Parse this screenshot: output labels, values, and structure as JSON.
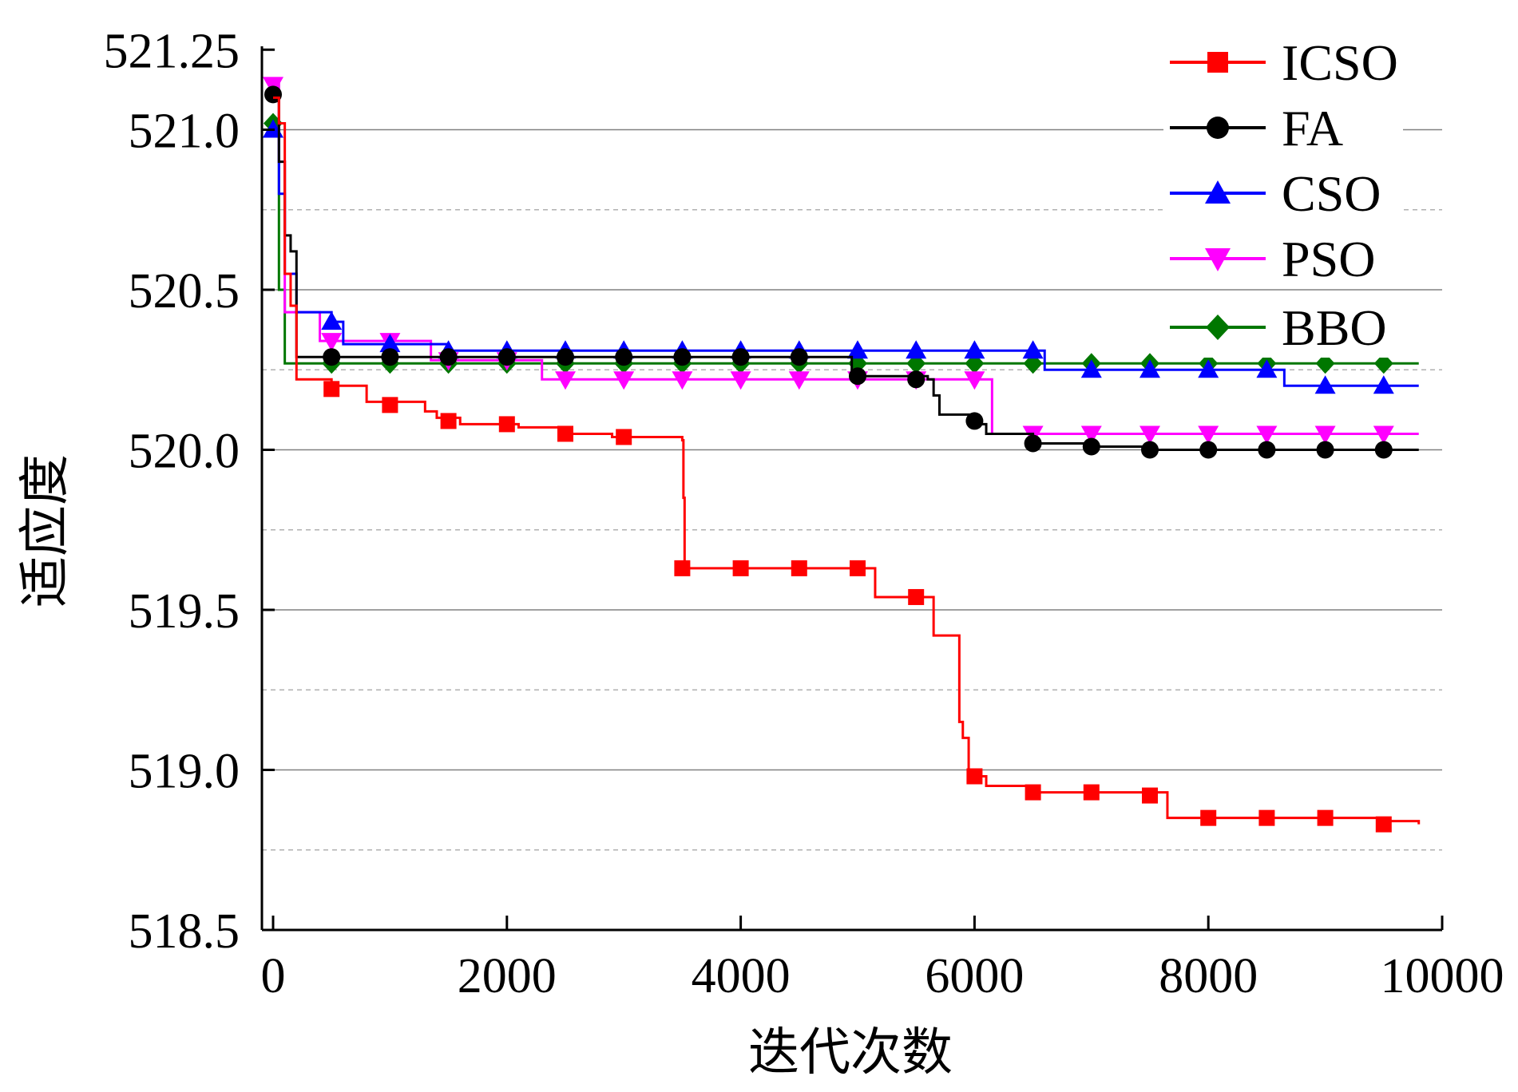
{
  "chart_data": {
    "type": "line",
    "xlabel": "迭代次数",
    "ylabel": "适应度",
    "xlim": [
      -100,
      10000
    ],
    "ylim": [
      518.5,
      521.25
    ],
    "xticks": [
      0,
      2000,
      4000,
      6000,
      8000,
      10000
    ],
    "yticks": [
      518.5,
      519.0,
      519.5,
      520.0,
      520.5,
      521.0,
      521.25
    ],
    "ytick_labels": [
      "518.5",
      "519.0",
      "519.5",
      "520.0",
      "520.5",
      "521.0",
      "521.25"
    ],
    "grid": "horizontal (solid at major, dashed at minor)",
    "legend_position": "top-right",
    "series": [
      {
        "name": "ICSO",
        "color": "#ff0000",
        "marker": "square",
        "step_points": [
          [
            0,
            521.1
          ],
          [
            50,
            521.02
          ],
          [
            100,
            520.55
          ],
          [
            150,
            520.45
          ],
          [
            200,
            520.22
          ],
          [
            500,
            520.2
          ],
          [
            800,
            520.15
          ],
          [
            1300,
            520.12
          ],
          [
            1400,
            520.1
          ],
          [
            1600,
            520.08
          ],
          [
            2100,
            520.07
          ],
          [
            2500,
            520.05
          ],
          [
            2900,
            520.04
          ],
          [
            3500,
            520.03
          ],
          [
            3510,
            519.85
          ],
          [
            3520,
            519.63
          ],
          [
            5100,
            519.63
          ],
          [
            5150,
            519.54
          ],
          [
            5600,
            519.54
          ],
          [
            5650,
            519.42
          ],
          [
            5850,
            519.42
          ],
          [
            5870,
            519.15
          ],
          [
            5900,
            519.1
          ],
          [
            5950,
            519.0
          ],
          [
            6000,
            518.98
          ],
          [
            6100,
            518.95
          ],
          [
            6500,
            518.93
          ],
          [
            7600,
            518.93
          ],
          [
            7650,
            518.85
          ],
          [
            9500,
            518.84
          ],
          [
            9800,
            518.83
          ]
        ],
        "marker_x": [
          500,
          1000,
          1500,
          2000,
          2500,
          3000,
          3500,
          4000,
          4500,
          5000,
          5500,
          6000,
          6500,
          7000,
          7500,
          8000,
          8500,
          9000,
          9500
        ],
        "marker_y": [
          520.19,
          520.14,
          520.09,
          520.08,
          520.05,
          520.04,
          519.63,
          519.63,
          519.63,
          519.63,
          519.54,
          518.98,
          518.93,
          518.93,
          518.92,
          518.85,
          518.85,
          518.85,
          518.83
        ]
      },
      {
        "name": "FA",
        "color": "#000000",
        "marker": "circle",
        "step_points": [
          [
            0,
            521.12
          ],
          [
            50,
            520.9
          ],
          [
            100,
            520.67
          ],
          [
            150,
            520.62
          ],
          [
            200,
            520.29
          ],
          [
            4900,
            520.29
          ],
          [
            4950,
            520.23
          ],
          [
            5600,
            520.22
          ],
          [
            5650,
            520.17
          ],
          [
            5700,
            520.11
          ],
          [
            6000,
            520.1
          ],
          [
            6050,
            520.08
          ],
          [
            6100,
            520.05
          ],
          [
            6500,
            520.02
          ],
          [
            7000,
            520.01
          ],
          [
            7500,
            520.0
          ],
          [
            9800,
            520.0
          ]
        ],
        "marker_x": [
          0,
          500,
          1000,
          1500,
          2000,
          2500,
          3000,
          3500,
          4000,
          4500,
          5000,
          5500,
          6000,
          6500,
          7000,
          7500,
          8000,
          8500,
          9000,
          9500
        ],
        "marker_y": [
          521.11,
          520.29,
          520.29,
          520.29,
          520.29,
          520.29,
          520.29,
          520.29,
          520.29,
          520.29,
          520.23,
          520.22,
          520.09,
          520.02,
          520.01,
          520.0,
          520.0,
          520.0,
          520.0,
          520.0
        ]
      },
      {
        "name": "CSO",
        "color": "#0000ff",
        "marker": "triangle-up",
        "step_points": [
          [
            0,
            521.0
          ],
          [
            50,
            520.8
          ],
          [
            100,
            520.55
          ],
          [
            200,
            520.43
          ],
          [
            500,
            520.4
          ],
          [
            600,
            520.33
          ],
          [
            1000,
            520.33
          ],
          [
            1500,
            520.31
          ],
          [
            6500,
            520.31
          ],
          [
            6600,
            520.25
          ],
          [
            8600,
            520.25
          ],
          [
            8650,
            520.2
          ],
          [
            9800,
            520.2
          ]
        ],
        "marker_x": [
          0,
          500,
          1000,
          1500,
          2000,
          2500,
          3000,
          3500,
          4000,
          4500,
          5000,
          5500,
          6000,
          6500,
          7000,
          7500,
          8000,
          8500,
          9000,
          9500
        ],
        "marker_y": [
          521.0,
          520.4,
          520.33,
          520.31,
          520.31,
          520.31,
          520.31,
          520.31,
          520.31,
          520.31,
          520.31,
          520.31,
          520.31,
          520.31,
          520.25,
          520.25,
          520.25,
          520.25,
          520.2,
          520.2
        ]
      },
      {
        "name": "PSO",
        "color": "#ff00ff",
        "marker": "triangle-down",
        "step_points": [
          [
            0,
            521.15
          ],
          [
            50,
            520.9
          ],
          [
            100,
            520.43
          ],
          [
            350,
            520.43
          ],
          [
            400,
            520.34
          ],
          [
            1300,
            520.34
          ],
          [
            1350,
            520.28
          ],
          [
            2250,
            520.28
          ],
          [
            2300,
            520.22
          ],
          [
            6100,
            520.22
          ],
          [
            6150,
            520.05
          ],
          [
            9800,
            520.05
          ]
        ],
        "marker_x": [
          0,
          500,
          1000,
          1500,
          2000,
          2500,
          3000,
          3500,
          4000,
          4500,
          5000,
          5500,
          6000,
          6500,
          7000,
          7500,
          8000,
          8500,
          9000,
          9500
        ],
        "marker_y": [
          521.14,
          520.34,
          520.34,
          520.28,
          520.28,
          520.22,
          520.22,
          520.22,
          520.22,
          520.22,
          520.22,
          520.22,
          520.22,
          520.05,
          520.05,
          520.05,
          520.05,
          520.05,
          520.05,
          520.05
        ]
      },
      {
        "name": "BBO",
        "color": "#007700",
        "marker": "diamond",
        "step_points": [
          [
            0,
            521.02
          ],
          [
            50,
            520.5
          ],
          [
            100,
            520.27
          ],
          [
            9800,
            520.27
          ]
        ],
        "marker_x": [
          0,
          500,
          1000,
          1500,
          2000,
          2500,
          3000,
          3500,
          4000,
          4500,
          5000,
          5500,
          6000,
          6500,
          7000,
          7500,
          8000,
          8500,
          9000,
          9500
        ],
        "marker_y": [
          521.02,
          520.27,
          520.27,
          520.27,
          520.27,
          520.27,
          520.27,
          520.27,
          520.27,
          520.27,
          520.27,
          520.27,
          520.27,
          520.27,
          520.27,
          520.27,
          520.27,
          520.27,
          520.27,
          520.27
        ]
      }
    ]
  }
}
